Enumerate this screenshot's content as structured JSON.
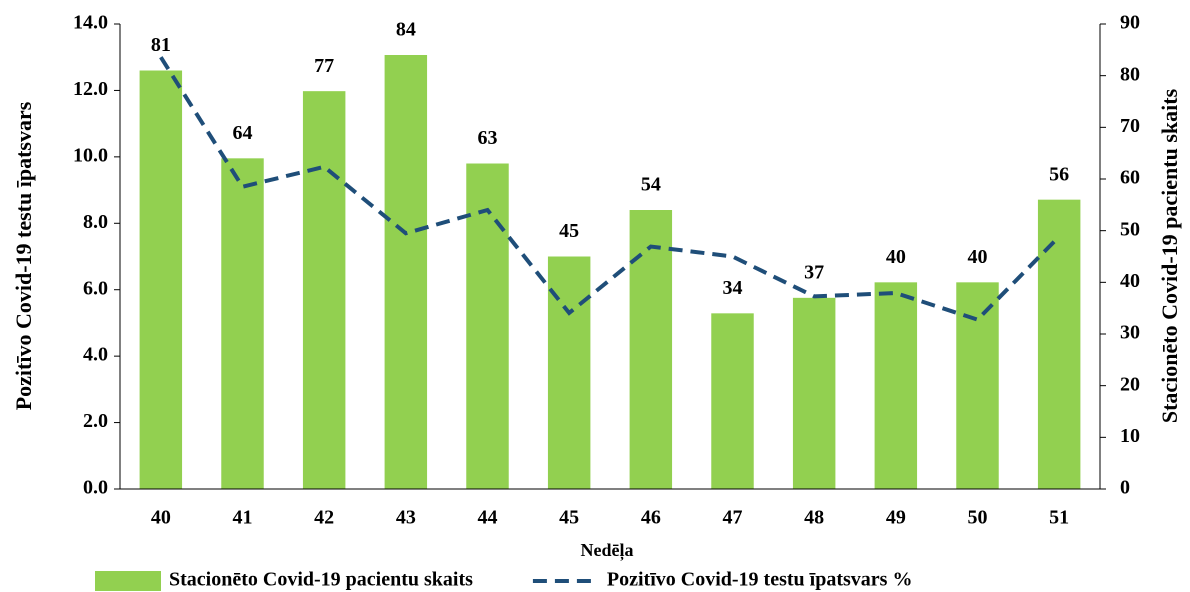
{
  "chart_data": {
    "type": "combo",
    "x_label": "Nedēļa",
    "y_label": "Pozitīvo Covid-19 testu īpatsvars",
    "y2_label": "Stacionēto Covid-19 pacientu skaits",
    "categories": [
      "40",
      "41",
      "42",
      "43",
      "44",
      "45",
      "46",
      "47",
      "48",
      "49",
      "50",
      "51"
    ],
    "series": [
      {
        "name": "Stacionēto Covid-19 pacientu skaits",
        "type": "bar",
        "axis": "y2",
        "color": "#92d050",
        "values": [
          81,
          64,
          77,
          84,
          63,
          45,
          54,
          34,
          37,
          40,
          40,
          56
        ]
      },
      {
        "name": "Pozitīvo Covid-19 testu īpatsvars %",
        "type": "line",
        "color": "#1f4e79",
        "dashed": true,
        "values": [
          13.0,
          9.1,
          9.7,
          7.7,
          8.4,
          5.3,
          7.3,
          7.0,
          5.8,
          5.9,
          5.1,
          7.6
        ]
      }
    ],
    "ylim": [
      0,
      14
    ],
    "yticks": [
      {
        "value": 0,
        "label": "0.0"
      },
      {
        "value": 2,
        "label": "2.0"
      },
      {
        "value": 4,
        "label": "4.0"
      },
      {
        "value": 6,
        "label": "6.0"
      },
      {
        "value": 8,
        "label": "8.0"
      },
      {
        "value": 10,
        "label": "10.0"
      },
      {
        "value": 12,
        "label": "12.0"
      },
      {
        "value": 14,
        "label": "14.0"
      }
    ],
    "y2lim": [
      0,
      90
    ],
    "y2ticks": [
      0,
      10,
      20,
      30,
      40,
      50,
      60,
      70,
      80,
      90
    ],
    "legend": "bottom"
  }
}
